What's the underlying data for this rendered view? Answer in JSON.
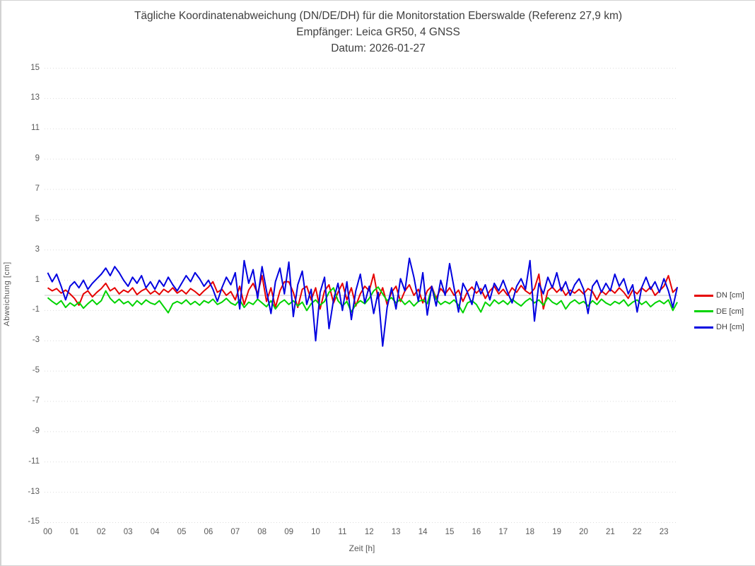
{
  "header": {
    "title": "Tägliche Koordinatenabweichung (DN/DE/DH) für die Monitorstation Eberswalde (Referenz 27,9 km)",
    "subtitle_receiver": "Empfänger: Leica GR50, 4 GNSS",
    "subtitle_date": "Datum: 2026-01-27"
  },
  "colors": {
    "dn": "#e60000",
    "de": "#00d300",
    "dh": "#0000e0",
    "grid": "#dbdbdb",
    "zero_line": "#c6c6c6",
    "tick_text": "#595959",
    "title_text": "#3f3f3f"
  },
  "chart_data": {
    "type": "line",
    "title": "Tägliche Koordinatenabweichung (DN/DE/DH) für die Monitorstation Eberswalde (Referenz 27,9 km)",
    "subtitle": "Empfänger: Leica GR50, 4 GNSS",
    "date": "2026-01-27",
    "xlabel": "Zeit [h]",
    "ylabel": "Abweichung [cm]",
    "x_ticks": [
      "00",
      "01",
      "02",
      "03",
      "04",
      "05",
      "06",
      "07",
      "08",
      "09",
      "10",
      "11",
      "12",
      "13",
      "14",
      "15",
      "16",
      "17",
      "18",
      "19",
      "20",
      "21",
      "22",
      "23"
    ],
    "y_ticks": [
      15,
      13,
      11,
      9,
      7,
      5,
      3,
      1,
      -1,
      -3,
      -5,
      -7,
      -9,
      -11,
      -13,
      -15
    ],
    "ylim": [
      -15,
      15
    ],
    "xlim_hours": [
      0,
      24
    ],
    "x_start_hour": 0,
    "sample_interval_minutes": 10,
    "grid": "horizontal dotted lines at odd values, solid light line at 0",
    "legend_position": "right",
    "series": [
      {
        "name": "DN [cm]",
        "color": "#e60000",
        "values": [
          0.5,
          0.3,
          0.45,
          0.15,
          0.35,
          0.1,
          -0.2,
          -0.65,
          0.1,
          0.3,
          -0.1,
          0.2,
          0.45,
          0.8,
          0.3,
          0.5,
          0.1,
          0.35,
          0.2,
          0.5,
          0.05,
          0.3,
          0.45,
          0.1,
          0.3,
          0.05,
          0.4,
          0.2,
          0.5,
          0.15,
          0.35,
          0.1,
          0.45,
          0.25,
          0.0,
          0.3,
          0.55,
          0.9,
          0.2,
          0.4,
          0.0,
          0.25,
          -0.3,
          0.6,
          -0.6,
          0.35,
          0.8,
          0.1,
          1.3,
          -0.4,
          0.5,
          -0.8,
          0.3,
          0.9,
          0.9,
          0.2,
          -0.8,
          0.4,
          0.6,
          -0.3,
          0.5,
          -0.9,
          0.3,
          0.7,
          -0.5,
          0.2,
          0.8,
          -0.3,
          0.5,
          -0.7,
          0.1,
          0.6,
          0.3,
          1.4,
          -0.2,
          0.5,
          -0.6,
          0.2,
          0.6,
          -0.4,
          0.3,
          0.7,
          0.0,
          0.4,
          -0.5,
          0.3,
          0.6,
          -0.2,
          0.45,
          0.1,
          0.5,
          0.0,
          0.35,
          -0.4,
          0.25,
          0.55,
          0.15,
          0.45,
          -0.2,
          0.3,
          0.6,
          0.1,
          0.4,
          0.0,
          0.5,
          0.2,
          0.65,
          0.3,
          0.1,
          0.45,
          1.4,
          -0.9,
          0.3,
          0.55,
          0.2,
          0.5,
          0.0,
          0.35,
          0.15,
          0.4,
          0.1,
          0.45,
          0.25,
          -0.3,
          0.3,
          0.05,
          0.4,
          0.15,
          0.5,
          0.2,
          -0.2,
          0.35,
          0.1,
          0.5,
          0.25,
          0.55,
          0.0,
          0.3,
          0.6,
          1.3,
          0.2,
          0.5
        ]
      },
      {
        "name": "DE [cm]",
        "color": "#00d300",
        "values": [
          -0.15,
          -0.4,
          -0.6,
          -0.35,
          -0.8,
          -0.5,
          -0.7,
          -0.45,
          -0.85,
          -0.55,
          -0.3,
          -0.6,
          -0.35,
          0.3,
          -0.2,
          -0.5,
          -0.25,
          -0.55,
          -0.4,
          -0.7,
          -0.35,
          -0.6,
          -0.3,
          -0.5,
          -0.6,
          -0.35,
          -0.75,
          -1.15,
          -0.55,
          -0.4,
          -0.55,
          -0.3,
          -0.6,
          -0.4,
          -0.65,
          -0.35,
          -0.5,
          -0.25,
          -0.6,
          -0.45,
          -0.2,
          -0.5,
          -0.65,
          -0.3,
          -0.8,
          -0.45,
          -0.6,
          -0.25,
          -0.5,
          -0.75,
          -0.35,
          -0.9,
          -0.5,
          -0.3,
          -0.6,
          -0.35,
          -0.7,
          -0.45,
          -1.0,
          -0.55,
          -0.3,
          -0.65,
          -0.4,
          0.2,
          0.5,
          -0.35,
          -0.7,
          -0.4,
          -1.1,
          -0.6,
          -0.35,
          -0.55,
          -0.2,
          0.3,
          0.55,
          0.1,
          -0.35,
          -0.15,
          -0.5,
          -0.25,
          -0.6,
          -0.35,
          -0.7,
          -0.4,
          -0.3,
          -0.55,
          0.5,
          -0.25,
          -0.6,
          -0.4,
          -0.55,
          -0.3,
          -0.65,
          -1.15,
          -0.5,
          -0.35,
          -0.6,
          -1.1,
          -0.45,
          -0.7,
          -0.3,
          -0.55,
          -0.35,
          -0.6,
          -0.25,
          -0.5,
          -0.7,
          -0.4,
          -0.2,
          -0.5,
          -0.3,
          -0.65,
          -0.15,
          -0.45,
          -0.6,
          -0.35,
          -0.9,
          -0.5,
          -0.3,
          -0.55,
          -0.4,
          -0.7,
          -0.35,
          -0.6,
          -0.25,
          -0.5,
          -0.65,
          -0.4,
          -0.55,
          -0.3,
          -0.7,
          -0.45,
          -0.3,
          -0.6,
          -0.4,
          -0.75,
          -0.5,
          -0.35,
          -0.55,
          -0.3,
          -1.0,
          -0.45
        ]
      },
      {
        "name": "DH [cm]",
        "color": "#0000e0",
        "values": [
          1.5,
          0.9,
          1.4,
          0.6,
          -0.3,
          0.6,
          0.9,
          0.5,
          1.0,
          0.4,
          0.8,
          1.1,
          1.4,
          1.8,
          1.3,
          1.9,
          1.5,
          1.0,
          0.6,
          1.2,
          0.8,
          1.3,
          0.5,
          0.9,
          0.4,
          1.0,
          0.6,
          1.2,
          0.7,
          0.3,
          0.8,
          1.3,
          0.9,
          1.5,
          1.1,
          0.6,
          1.0,
          0.4,
          -0.4,
          0.5,
          1.2,
          0.7,
          1.5,
          -0.9,
          2.3,
          0.8,
          1.7,
          -0.2,
          1.9,
          0.3,
          -1.2,
          0.9,
          1.8,
          0.1,
          2.2,
          -1.4,
          0.7,
          1.6,
          -0.6,
          0.4,
          -3.0,
          0.2,
          1.2,
          -2.2,
          -0.3,
          0.8,
          -1.0,
          0.9,
          -1.6,
          0.3,
          1.4,
          -0.5,
          0.6,
          -1.2,
          0.2,
          -3.35,
          -0.8,
          0.5,
          -0.9,
          1.1,
          0.3,
          2.45,
          1.2,
          -0.4,
          1.5,
          -1.3,
          0.6,
          -0.7,
          1.0,
          0.0,
          2.1,
          0.5,
          -1.1,
          0.8,
          0.2,
          -0.6,
          0.9,
          0.1,
          0.7,
          -0.3,
          0.8,
          0.3,
          1.0,
          0.2,
          -0.5,
          0.6,
          1.1,
          0.4,
          2.3,
          -1.7,
          0.8,
          0.1,
          1.2,
          0.5,
          1.5,
          0.3,
          0.9,
          0.0,
          0.7,
          1.1,
          0.4,
          -1.2,
          0.6,
          1.0,
          0.2,
          0.8,
          0.3,
          1.4,
          0.6,
          1.1,
          0.1,
          0.7,
          -1.1,
          0.5,
          1.2,
          0.4,
          0.9,
          0.2,
          1.1,
          0.3,
          -0.8,
          0.55
        ]
      }
    ]
  }
}
